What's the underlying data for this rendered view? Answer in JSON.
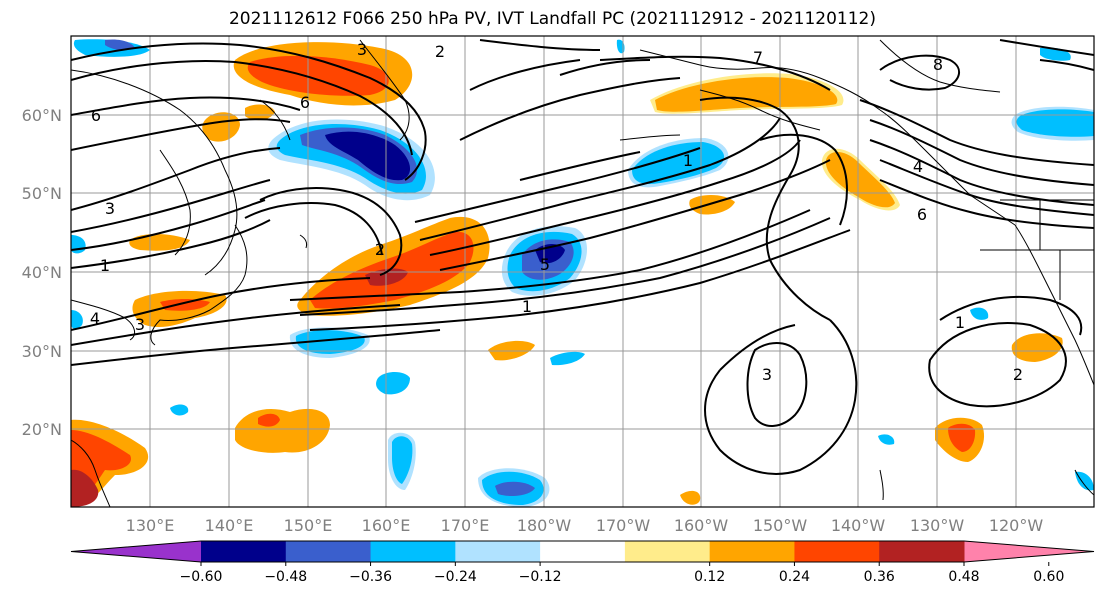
{
  "title": "2021112612 F066 250 hPa PV, IVT Landfall PC (2021112912 - 2021120112)",
  "lat_labels": [
    "60°N",
    "50°N",
    "40°N",
    "30°N",
    "20°N"
  ],
  "lon_labels": [
    "130°E",
    "140°E",
    "150°E",
    "160°E",
    "170°E",
    "180°W",
    "170°W",
    "160°W",
    "150°W",
    "140°W",
    "130°W",
    "120°W"
  ],
  "colorbar": {
    "tick_labels": [
      "−0.60",
      "−0.48",
      "−0.36",
      "−0.24",
      "−0.12",
      "0.12",
      "0.24",
      "0.36",
      "0.48",
      "0.60"
    ],
    "colors": [
      "#9932cc",
      "#00008b",
      "#3a5fcd",
      "#00bfff",
      "#b0e2ff",
      "#ffffff",
      "#ffec8b",
      "#ffa500",
      "#ff4500",
      "#b22222",
      "#ff82ab"
    ],
    "extend": "both"
  },
  "contour_labels": [
    "3",
    "2",
    "7",
    "8",
    "6",
    "6",
    "3",
    "1",
    "4",
    "3",
    "2",
    "5",
    "1",
    "1",
    "4",
    "6",
    "1",
    "2",
    "3"
  ],
  "shading_colors": {
    "dark_blue": "#00008b",
    "mid_blue": "#3a5fcd",
    "blue": "#00bfff",
    "light_blue": "#b0e2ff",
    "yellow": "#ffec8b",
    "orange": "#ffa500",
    "red_orange": "#ff4500",
    "dark_red": "#b22222"
  }
}
